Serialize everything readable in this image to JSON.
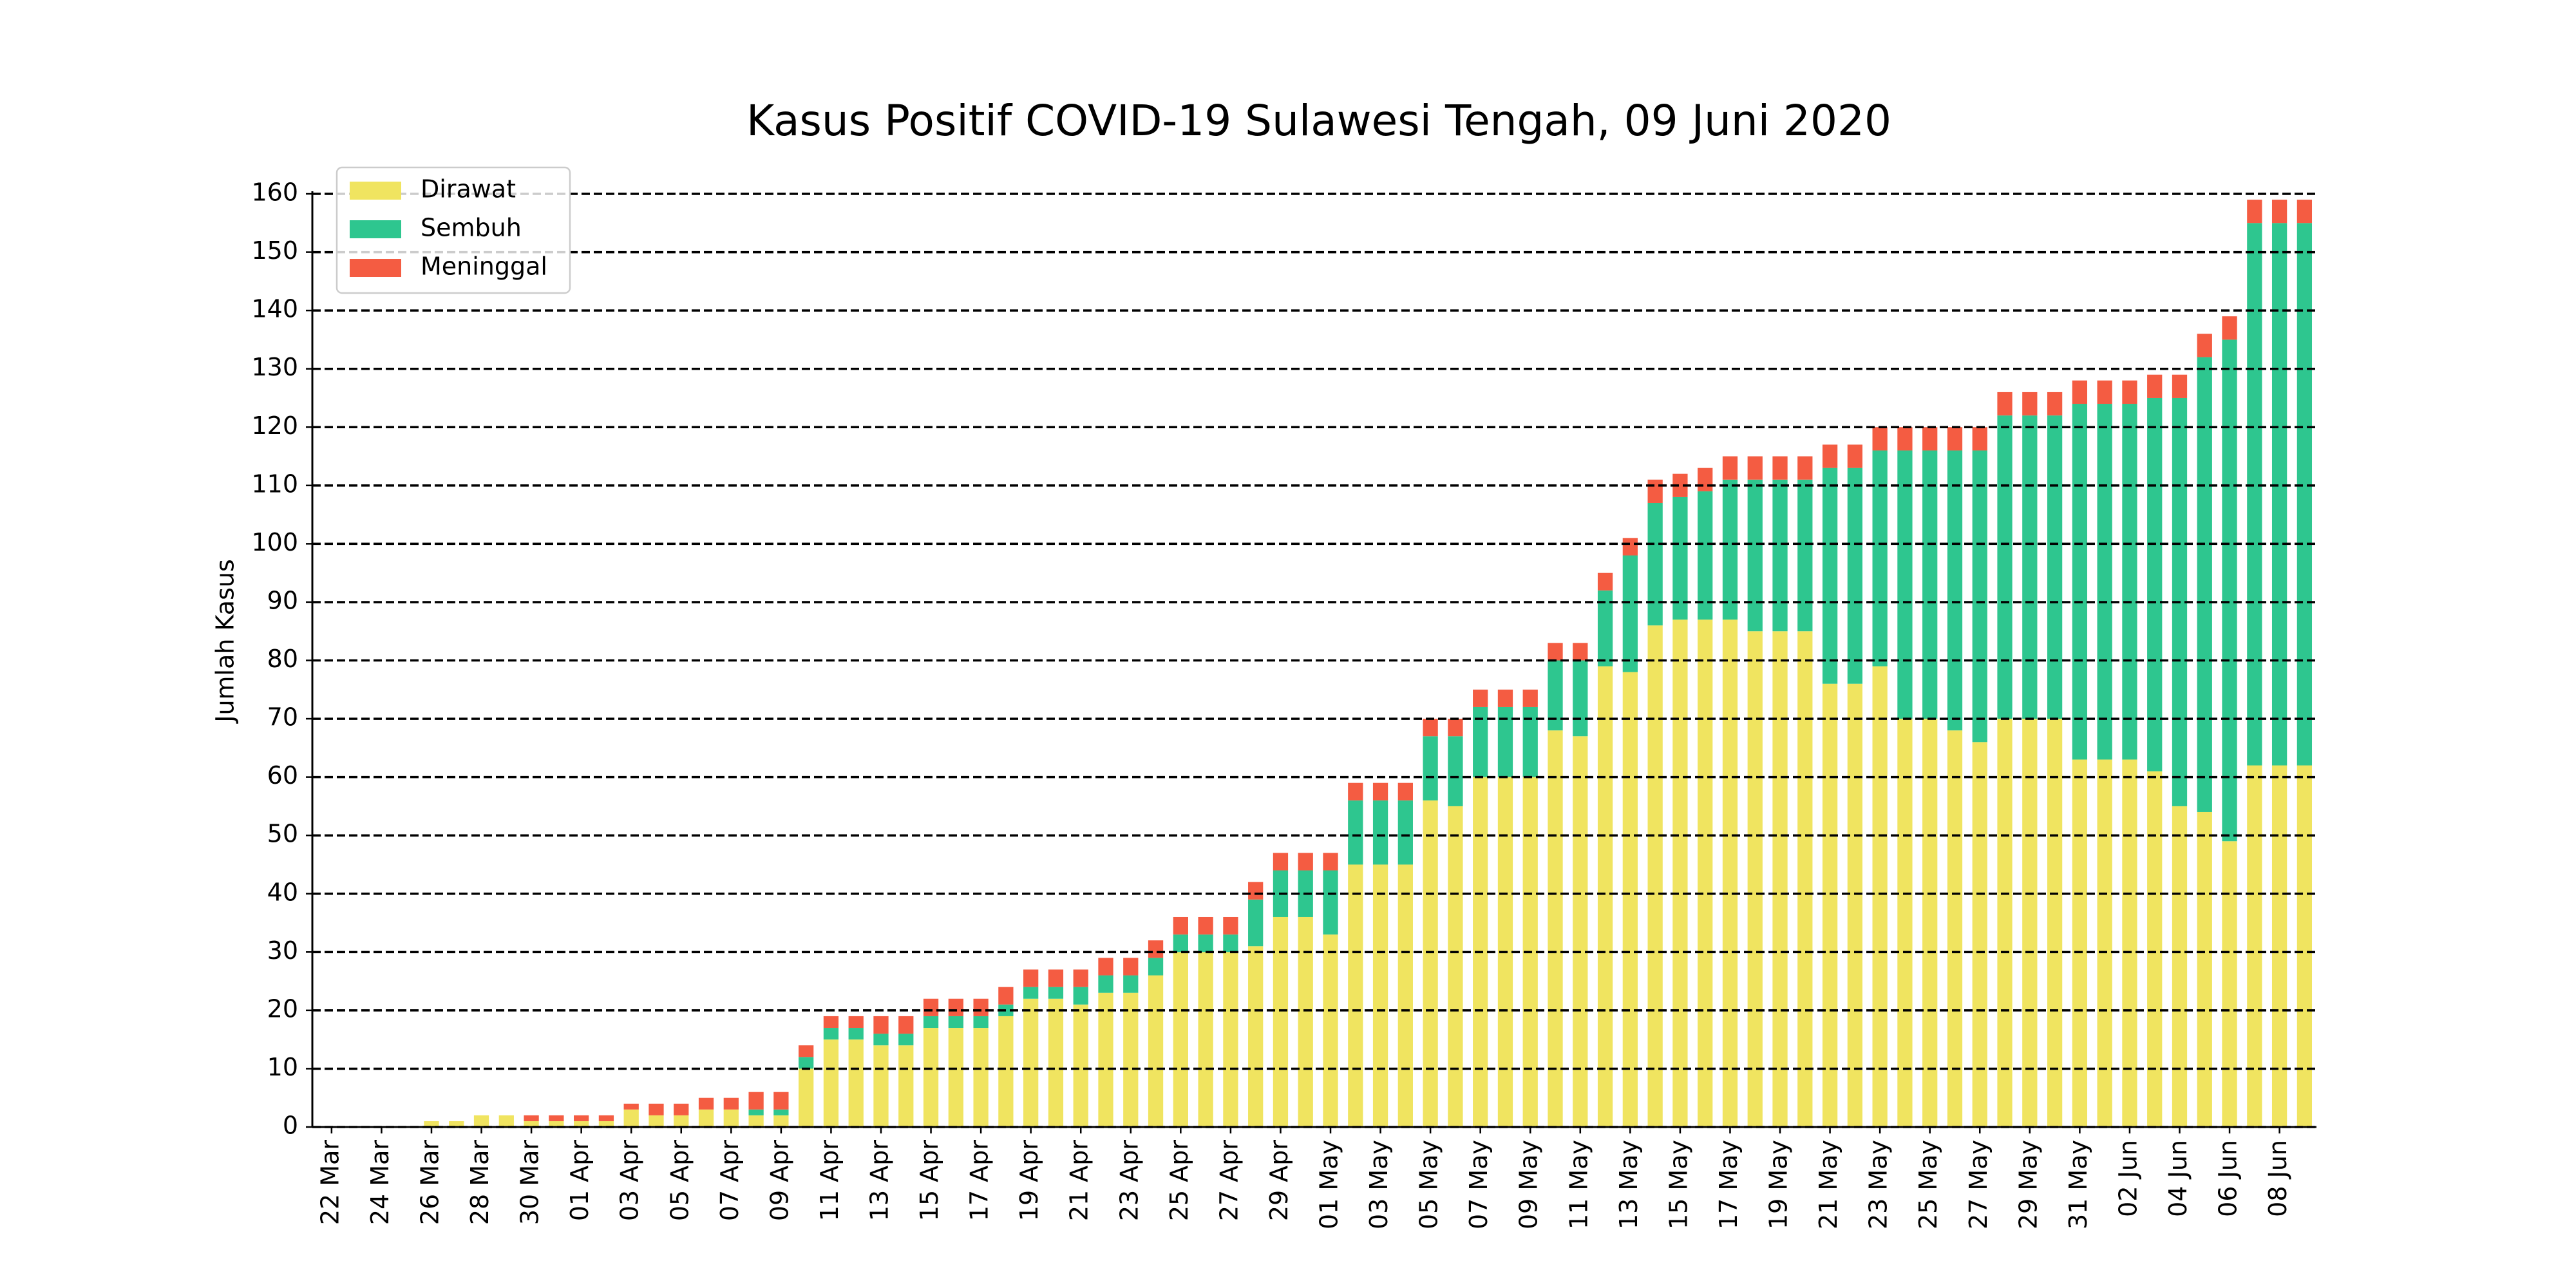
{
  "chart_data": {
    "type": "stacked_bar",
    "title": "Kasus Positif COVID-19 Sulawesi Tengah, 09 Juni 2020",
    "y_label": "Jumlah Kasus",
    "categories": [
      "22 Mar",
      null,
      "24 Mar",
      null,
      "26 Mar",
      null,
      "28 Mar",
      null,
      "30 Mar",
      null,
      "01 Apr",
      null,
      "03 Apr",
      null,
      "05 Apr",
      null,
      "07 Apr",
      null,
      "09 Apr",
      null,
      "11 Apr",
      null,
      "13 Apr",
      null,
      "15 Apr",
      null,
      "17 Apr",
      null,
      "19 Apr",
      null,
      "21 Apr",
      null,
      "23 Apr",
      null,
      "25 Apr",
      null,
      "27 Apr",
      null,
      "29 Apr",
      null,
      "01 May",
      null,
      "03 May",
      null,
      "05 May",
      null,
      "07 May",
      null,
      "09 May",
      null,
      "11 May",
      null,
      "13 May",
      null,
      "15 May",
      null,
      "17 May",
      null,
      "19 May",
      null,
      "21 May",
      null,
      "23 May",
      null,
      "25 May",
      null,
      "27 May",
      null,
      "29 May",
      null,
      "31 May",
      null,
      "02 Jun",
      null,
      "04 Jun",
      null,
      "06 Jun",
      null,
      "08 Jun",
      null
    ],
    "series": [
      {
        "name": "Dirawat",
        "color": "#f0e460",
        "values": [
          0,
          0,
          0,
          0,
          1,
          1,
          2,
          2,
          1,
          1,
          1,
          1,
          3,
          2,
          2,
          3,
          3,
          2,
          2,
          10,
          15,
          15,
          14,
          14,
          17,
          17,
          17,
          19,
          22,
          22,
          21,
          23,
          23,
          26,
          30,
          30,
          30,
          31,
          36,
          36,
          33,
          45,
          45,
          45,
          56,
          55,
          60,
          60,
          60,
          68,
          67,
          79,
          78,
          86,
          87,
          87,
          87,
          85,
          85,
          85,
          76,
          76,
          79,
          70,
          70,
          68,
          66,
          70,
          70,
          70,
          63,
          63,
          63,
          61,
          55,
          54,
          49,
          62,
          62,
          62
        ]
      },
      {
        "name": "Sembuh",
        "color": "#2ec68f",
        "values": [
          0,
          0,
          0,
          0,
          0,
          0,
          0,
          0,
          0,
          0,
          0,
          0,
          0,
          0,
          0,
          0,
          0,
          1,
          1,
          2,
          2,
          2,
          2,
          2,
          2,
          2,
          2,
          2,
          2,
          2,
          3,
          3,
          3,
          3,
          3,
          3,
          3,
          8,
          8,
          8,
          11,
          11,
          11,
          11,
          11,
          12,
          12,
          12,
          12,
          12,
          13,
          13,
          20,
          21,
          21,
          22,
          24,
          26,
          26,
          26,
          37,
          37,
          37,
          46,
          46,
          48,
          50,
          52,
          52,
          52,
          61,
          61,
          61,
          64,
          70,
          78,
          86,
          93,
          93,
          93
        ]
      },
      {
        "name": "Meninggal",
        "color": "#f45c42",
        "values": [
          0,
          0,
          0,
          0,
          0,
          0,
          0,
          0,
          1,
          1,
          1,
          1,
          1,
          2,
          2,
          2,
          2,
          3,
          3,
          2,
          2,
          2,
          3,
          3,
          3,
          3,
          3,
          3,
          3,
          3,
          3,
          3,
          3,
          3,
          3,
          3,
          3,
          3,
          3,
          3,
          3,
          3,
          3,
          3,
          3,
          3,
          3,
          3,
          3,
          3,
          3,
          3,
          3,
          4,
          4,
          4,
          4,
          4,
          4,
          4,
          4,
          4,
          4,
          4,
          4,
          4,
          4,
          4,
          4,
          4,
          4,
          4,
          4,
          4,
          4,
          4,
          4,
          4,
          4,
          4
        ]
      }
    ],
    "ylim": [
      0,
      160
    ],
    "yticks": [
      0,
      10,
      20,
      30,
      40,
      50,
      60,
      70,
      80,
      90,
      100,
      110,
      120,
      130,
      140,
      150,
      160
    ],
    "grid": true,
    "legend": "upper left"
  }
}
